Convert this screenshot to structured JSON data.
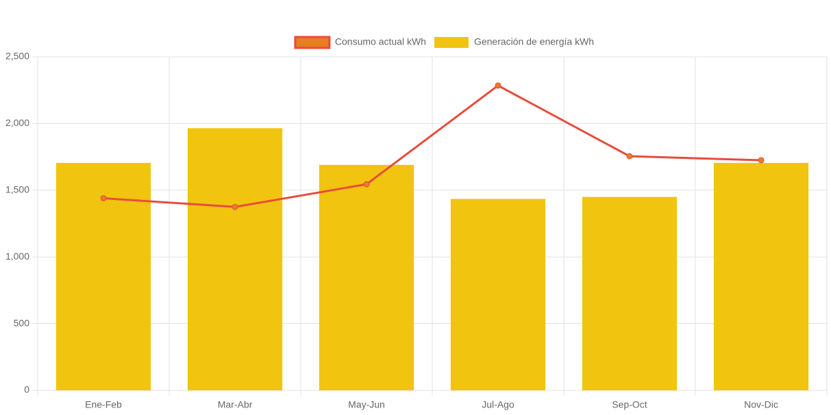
{
  "chart_data": {
    "type": "bar",
    "categories": [
      "Ene-Feb",
      "Mar-Abr",
      "May-Jun",
      "Jul-Ago",
      "Sep-Oct",
      "Nov-Dic"
    ],
    "series": [
      {
        "name": "Consumo actual kWh",
        "type": "line",
        "color": "#e74c3c",
        "point_color": "#e67e22",
        "values": [
          1440,
          1375,
          1545,
          2285,
          1755,
          1725
        ]
      },
      {
        "name": "Generación de energía kWh",
        "type": "bar",
        "color": "#f1c40f",
        "values": [
          1705,
          1965,
          1690,
          1435,
          1450,
          1705
        ]
      }
    ],
    "ylim": [
      0,
      2500
    ],
    "yticks": [
      0,
      500,
      {
        "value": 1000,
        "label": "1,000"
      },
      {
        "value": 1500,
        "label": "1,500"
      },
      {
        "value": 2000,
        "label": "2,000"
      },
      {
        "value": 2500,
        "label": "2,500"
      }
    ],
    "grid": true,
    "legend": "top"
  }
}
